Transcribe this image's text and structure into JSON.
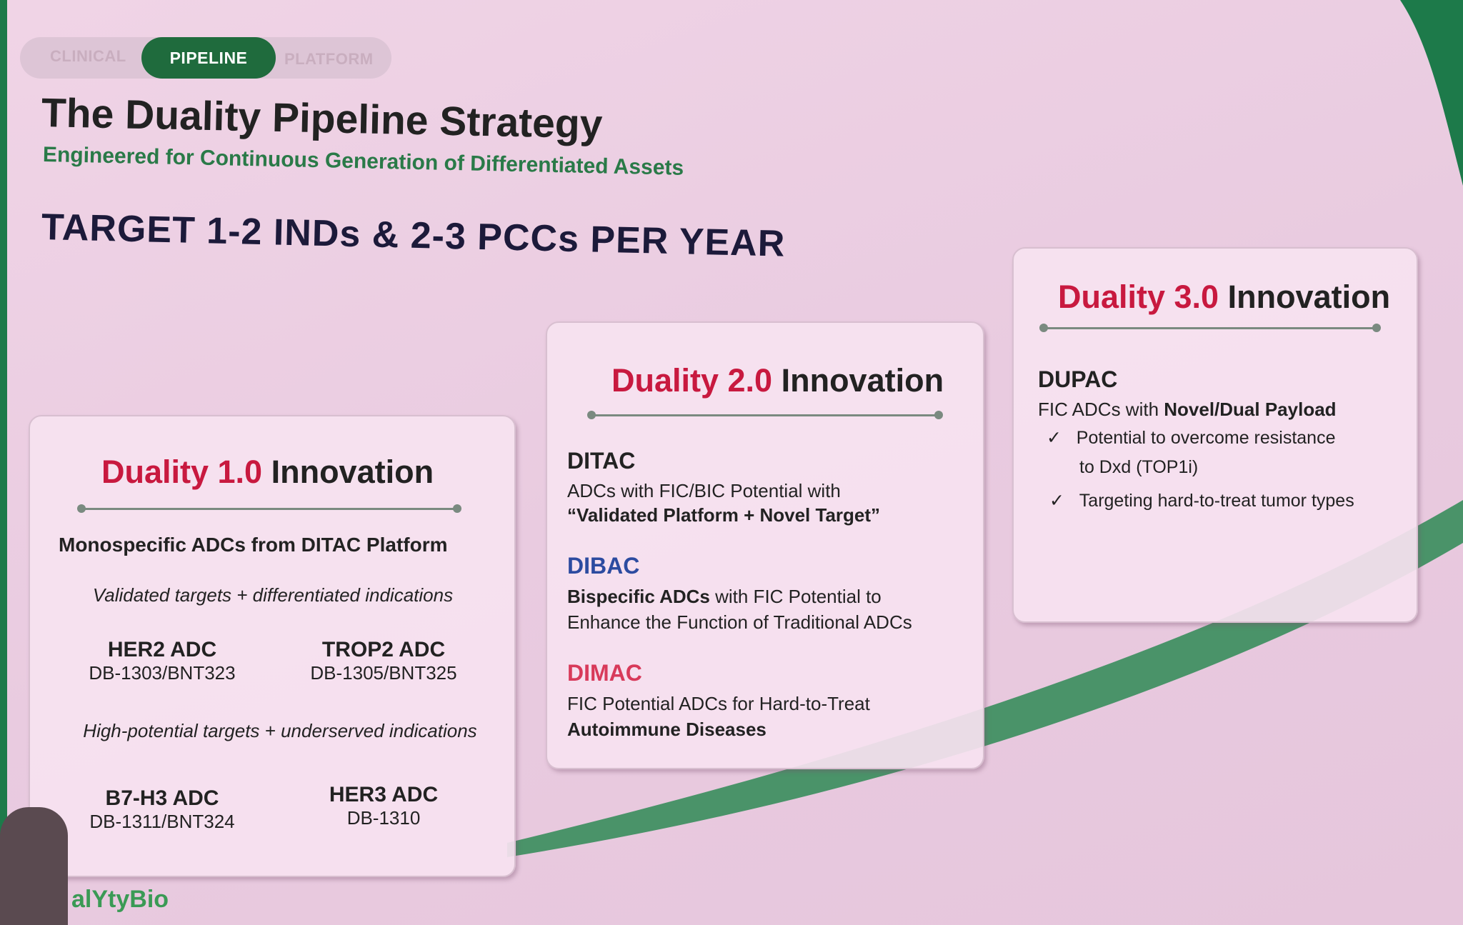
{
  "tabs": [
    {
      "label": "CLINICAL",
      "active": false
    },
    {
      "label": "PIPELINE",
      "active": true
    },
    {
      "label": "PLATFORM",
      "active": false
    }
  ],
  "title": "The Duality Pipeline Strategy",
  "subtitle": "Engineered for Continuous Generation of Differentiated Assets",
  "target": "TARGET 1-2 INDs & 2-3 PCCs PER YEAR",
  "colors": {
    "accent_red": "#c8193f",
    "brand_green": "#1f6b3d",
    "dibac_blue": "#2c4ba0",
    "dimac_pink": "#d83a5a"
  },
  "card1": {
    "title_red": "Duality 1.0",
    "title_rest": " Innovation",
    "heading": "Monospecific ADCs from DITAC Platform",
    "group1": "Validated targets + differentiated indications",
    "group2": "High-potential targets + underserved indications",
    "assets": [
      {
        "name": "HER2 ADC",
        "code": "DB-1303/BNT323"
      },
      {
        "name": "TROP2 ADC",
        "code": "DB-1305/BNT325"
      },
      {
        "name": "B7-H3 ADC",
        "code": "DB-1311/BNT324"
      },
      {
        "name": "HER3 ADC",
        "code": "DB-1310"
      }
    ]
  },
  "card2": {
    "title_red": "Duality 2.0",
    "title_rest": " Innovation",
    "ditac": {
      "name": "DITAC",
      "line1": "ADCs with FIC/BIC Potential with",
      "line2": "“Validated Platform + Novel Target”"
    },
    "dibac": {
      "name": "DIBAC",
      "line1_bold": "Bispecific ADCs",
      "line1_rest": " with FIC Potential to",
      "line2": "Enhance the Function of Traditional ADCs"
    },
    "dimac": {
      "name": "DIMAC",
      "line1": "FIC Potential ADCs for Hard-to-Treat",
      "line2": "Autoimmune Diseases"
    }
  },
  "card3": {
    "title_red": "Duality 3.0",
    "title_rest": " Innovation",
    "name": "DUPAC",
    "line1": "FIC ADCs with ",
    "line1_bold": "Novel/Dual Payload",
    "checks": [
      "Potential to overcome resistance",
      "to Dxd (TOP1i)",
      "Targeting hard-to-treat tumor types"
    ]
  },
  "logo": "alYtyBio"
}
